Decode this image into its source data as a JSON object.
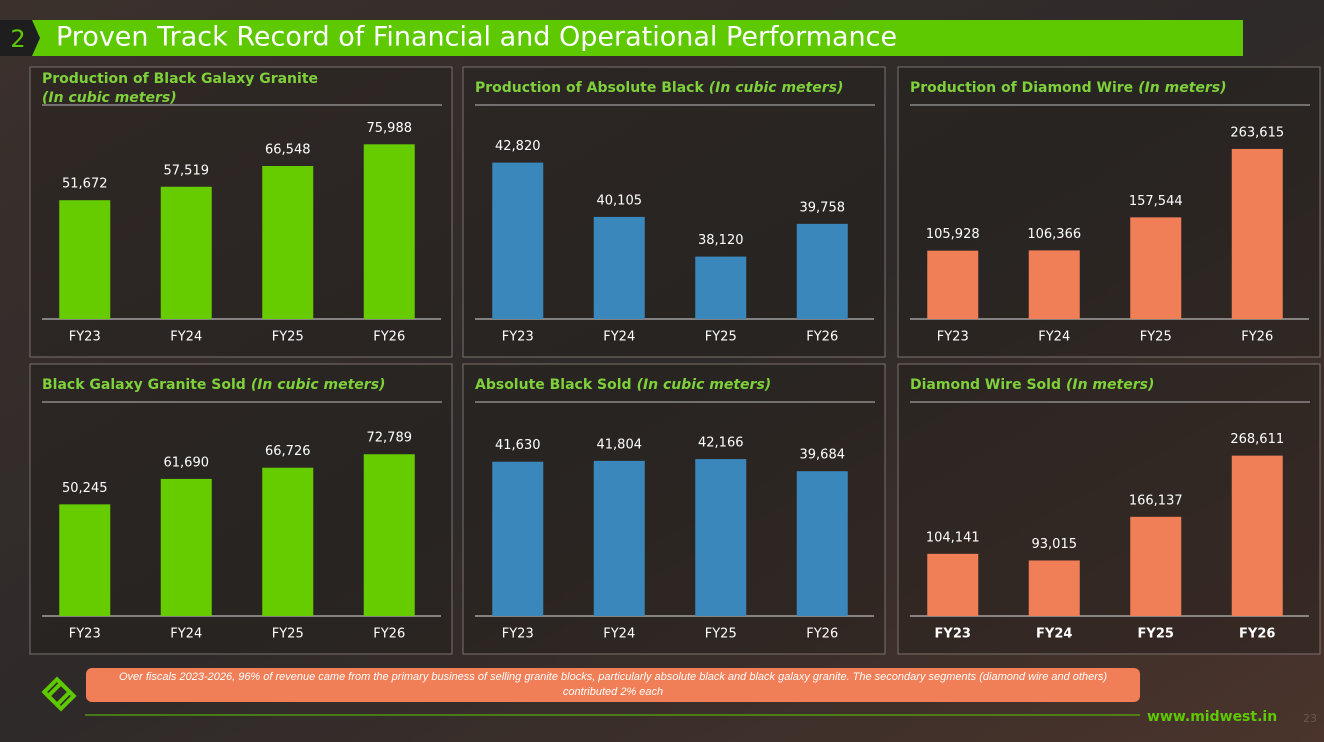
{
  "slide": {
    "number": "2",
    "title": "Proven Track Record of Financial and Operational Performance",
    "footnote": "Over fiscals 2023-2026, 96% of revenue came from the primary business of selling granite blocks, particularly absolute black and black galaxy granite. The secondary segments (diamond wire and others) contributed 2% each",
    "website": "www.midwest.in",
    "page": "23"
  },
  "chart_data": [
    {
      "type": "bar",
      "title": "Production of Black Galaxy Granite",
      "subtitle": "(In cubic meters)",
      "categories": [
        "FY23",
        "FY24",
        "FY25",
        "FY26"
      ],
      "values": [
        51672,
        57519,
        66548,
        75988
      ],
      "value_labels": [
        "51,672",
        "57,519",
        "66,548",
        "75,988"
      ],
      "color": "#66cc00",
      "ylim": [
        0,
        87000
      ]
    },
    {
      "type": "bar",
      "title": "Production of Absolute Black",
      "subtitle": "(In cubic meters)",
      "categories": [
        "FY23",
        "FY24",
        "FY25",
        "FY26"
      ],
      "values": [
        42820,
        40105,
        38120,
        39758
      ],
      "value_labels": [
        "42,820",
        "40,105",
        "38,120",
        "39,758"
      ],
      "color": "#3a87bb",
      "ylim": [
        35000,
        45000
      ]
    },
    {
      "type": "bar",
      "title": "Production of Diamond Wire",
      "subtitle": "(In meters)",
      "categories": [
        "FY23",
        "FY24",
        "FY25",
        "FY26"
      ],
      "values": [
        105928,
        106366,
        157544,
        263615
      ],
      "value_labels": [
        "105,928",
        "106,366",
        "157,544",
        "263,615"
      ],
      "color": "#f07f58",
      "ylim": [
        0,
        310000
      ]
    },
    {
      "type": "bar",
      "title": "Black Galaxy Granite Sold",
      "subtitle": "(In cubic meters)",
      "categories": [
        "FY23",
        "FY24",
        "FY25",
        "FY26"
      ],
      "values": [
        50245,
        61690,
        66726,
        72789
      ],
      "value_labels": [
        "50,245",
        "61,690",
        "66,726",
        "72,789"
      ],
      "color": "#66cc00",
      "ylim": [
        0,
        90000
      ]
    },
    {
      "type": "bar",
      "title": "Absolute Black Sold",
      "subtitle": "(In cubic meters)",
      "categories": [
        "FY23",
        "FY24",
        "FY25",
        "FY26"
      ],
      "values": [
        41630,
        41804,
        42166,
        39684
      ],
      "value_labels": [
        "41,630",
        "41,804",
        "42,166",
        "39,684"
      ],
      "color": "#3a87bb",
      "ylim": [
        10000,
        51000
      ]
    },
    {
      "type": "bar",
      "title": "Diamond Wire Sold",
      "subtitle": "(In meters)",
      "categories": [
        "FY23",
        "FY24",
        "FY25",
        "FY26"
      ],
      "values": [
        104141,
        93015,
        166137,
        268611
      ],
      "value_labels": [
        "104,141",
        "93,015",
        "166,137",
        "268,611"
      ],
      "color": "#f07f58",
      "ylim": [
        0,
        335000
      ]
    }
  ]
}
